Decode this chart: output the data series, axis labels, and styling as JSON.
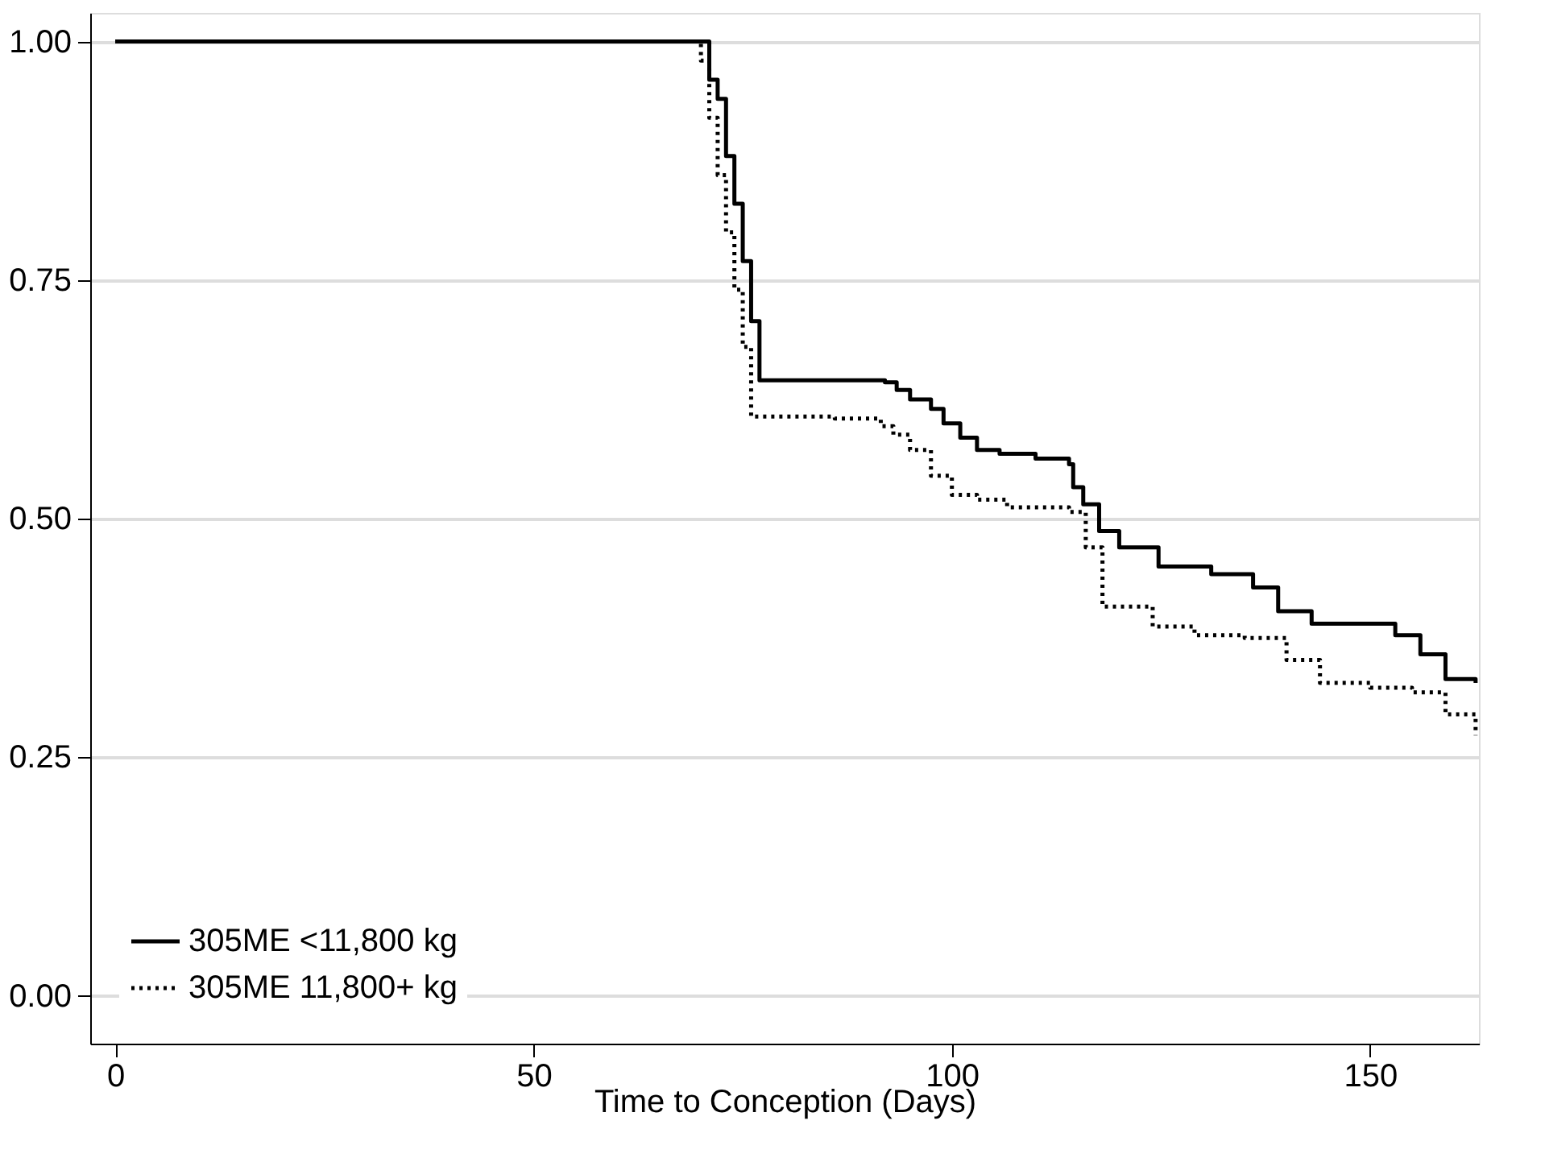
{
  "chart_data": {
    "type": "step",
    "xlabel": "Time to Conception (Days)",
    "xlim": [
      -3,
      163
    ],
    "xticks": [
      0,
      50,
      100,
      150
    ],
    "ylim": [
      -0.05,
      1.03
    ],
    "yticks": [
      {
        "value": 0,
        "label": "0.00"
      },
      {
        "value": 0.25,
        "label": "0.25"
      },
      {
        "value": 0.5,
        "label": "0.50"
      },
      {
        "value": 0.75,
        "label": "0.75"
      },
      {
        "value": 1,
        "label": "1.00"
      }
    ],
    "grid": "y",
    "legend": "bottom left",
    "series": [
      {
        "name": "305ME <11,800 kg",
        "color": "#000000",
        "line_style": "solid",
        "x": [
          0,
          70.5,
          71,
          72,
          73,
          74,
          75,
          76,
          77,
          92,
          93.4,
          95,
          97.5,
          99,
          101,
          103,
          105.7,
          110,
          114,
          114.5,
          115.7,
          117.6,
          120,
          124.7,
          131,
          136,
          139,
          143,
          151,
          153,
          156,
          159,
          162.6
        ],
        "values": [
          1.0,
          1.0,
          0.96,
          0.94,
          0.88,
          0.83,
          0.77,
          0.707,
          0.645,
          0.643,
          0.635,
          0.625,
          0.615,
          0.6,
          0.585,
          0.572,
          0.568,
          0.563,
          0.557,
          0.533,
          0.515,
          0.487,
          0.47,
          0.45,
          0.442,
          0.428,
          0.403,
          0.39,
          0.39,
          0.378,
          0.358,
          0.332,
          0.328
        ]
      },
      {
        "name": "305ME 11,800+ kg",
        "color": "#000000",
        "line_style": "dotted",
        "x": [
          0,
          70,
          71,
          72,
          73,
          74,
          75,
          76,
          86,
          91.5,
          93,
          95,
          97.5,
          100,
          103,
          106.6,
          114,
          116,
          118,
          124,
          129,
          135,
          140,
          144,
          150,
          155,
          159,
          162.6
        ],
        "values": [
          1.0,
          0.98,
          0.92,
          0.86,
          0.8,
          0.74,
          0.68,
          0.607,
          0.605,
          0.597,
          0.588,
          0.572,
          0.545,
          0.525,
          0.52,
          0.512,
          0.507,
          0.47,
          0.408,
          0.387,
          0.378,
          0.375,
          0.352,
          0.328,
          0.323,
          0.318,
          0.295,
          0.273
        ]
      }
    ]
  }
}
